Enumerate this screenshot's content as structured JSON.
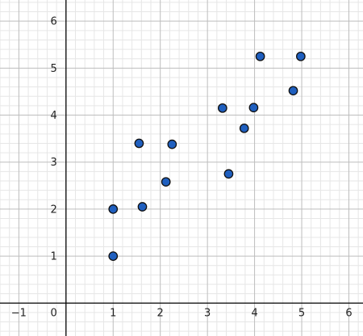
{
  "chart_data": {
    "type": "scatter",
    "title": "",
    "xlabel": "",
    "ylabel": "",
    "xlim": [
      -1.4,
      6.3
    ],
    "ylim": [
      -0.7,
      6.45
    ],
    "grid": true,
    "x_ticks": [
      -1,
      1,
      2,
      3,
      4,
      5,
      6
    ],
    "y_ticks": [
      1,
      2,
      3,
      4,
      5,
      6
    ],
    "origin_label": "0",
    "series": [
      {
        "points": [
          {
            "x": 1.0,
            "y": 1.0
          },
          {
            "x": 1.0,
            "y": 2.0
          },
          {
            "x": 1.55,
            "y": 3.4
          },
          {
            "x": 1.62,
            "y": 2.05
          },
          {
            "x": 2.12,
            "y": 2.58
          },
          {
            "x": 2.25,
            "y": 3.38
          },
          {
            "x": 3.32,
            "y": 4.15
          },
          {
            "x": 3.45,
            "y": 2.75
          },
          {
            "x": 3.78,
            "y": 3.72
          },
          {
            "x": 3.98,
            "y": 4.16
          },
          {
            "x": 4.12,
            "y": 5.25
          },
          {
            "x": 4.82,
            "y": 4.52
          },
          {
            "x": 4.98,
            "y": 5.25
          }
        ]
      }
    ],
    "colors": {
      "point_fill": "#1f5fbf",
      "point_stroke": "#111111",
      "minor_grid": "#e6e6e6",
      "major_grid": "#bdbdbd",
      "axis": "#000000"
    }
  }
}
